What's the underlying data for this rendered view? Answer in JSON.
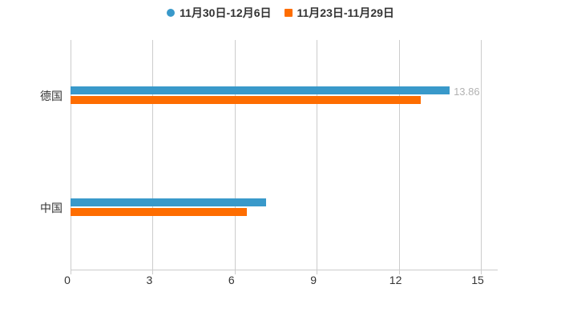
{
  "chart_data": {
    "type": "bar",
    "orientation": "horizontal",
    "title": "",
    "categories": [
      "德国",
      "中国"
    ],
    "series": [
      {
        "name": "11月30日-12月6日",
        "color": "#3999ca",
        "marker": "circle",
        "values": [
          13.86,
          7.15
        ]
      },
      {
        "name": "11月23日-11月29日",
        "color": "#fe6d00",
        "marker": "square",
        "values": [
          12.8,
          6.45
        ]
      }
    ],
    "xlim": [
      0,
      15
    ],
    "xticks": [
      "0",
      "3",
      "6",
      "9",
      "12",
      "15"
    ],
    "xtick_values": [
      0,
      3,
      6,
      9,
      12,
      15
    ],
    "grid": true,
    "legend_position": "top-center",
    "value_labels": [
      {
        "series_index": 0,
        "category_index": 0,
        "text": "13.86"
      }
    ]
  },
  "colors": {
    "background": "#ffffff",
    "text": "#333333",
    "axis": "#cccccc",
    "grid": "#cccccc",
    "series_blue": "#3999ca",
    "series_orange": "#fe6d00",
    "value_label": "rgba(51,51,51,0.38)"
  }
}
